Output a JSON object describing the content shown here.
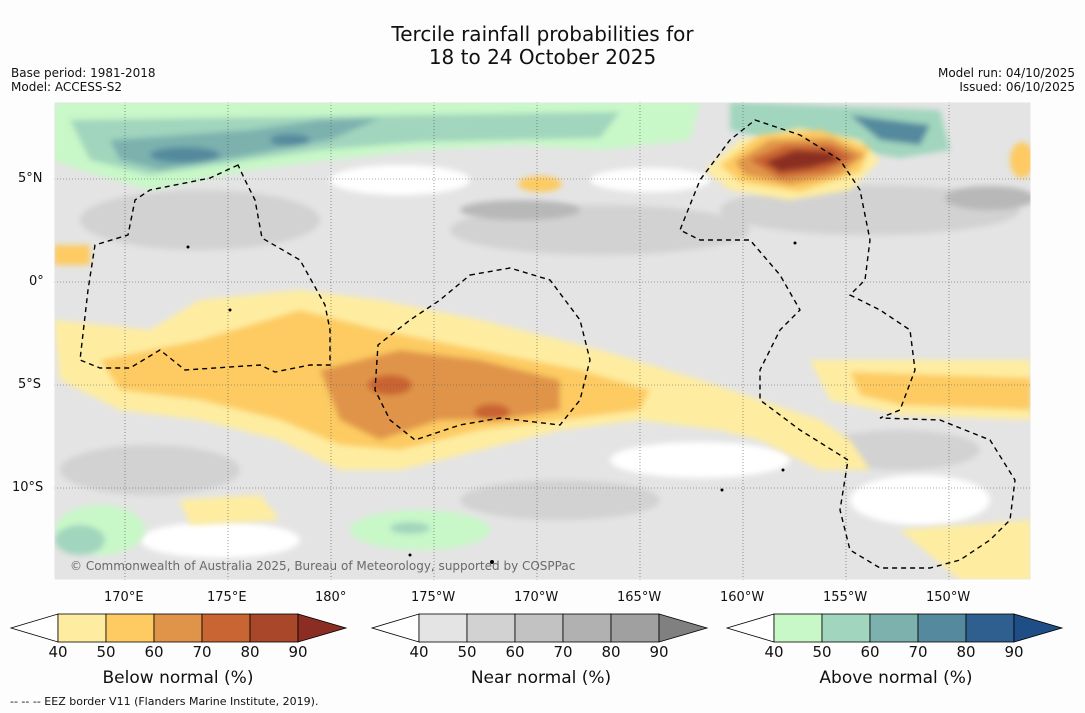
{
  "title": {
    "line1": "Tercile rainfall probabilities for",
    "line2": "18 to 24 October 2025"
  },
  "info_left": {
    "base_period": "Base period: 1981-2018",
    "model": "Model: ACCESS-S2"
  },
  "info_right": {
    "model_run": "Model run: 04/10/2025",
    "issued": "Issued: 06/10/2025"
  },
  "map": {
    "lat_labels": [
      "5°N",
      "0°",
      "5°S",
      "10°S"
    ],
    "lon_labels": [
      "170°E",
      "175°E",
      "180°",
      "175°W",
      "170°W",
      "165°W",
      "160°W",
      "155°W",
      "150°W"
    ],
    "copyright": "© Commonwealth of Australia 2025, Bureau of Meteorology, supported by COSPPac"
  },
  "colorbars": [
    {
      "label": "Below normal (%)",
      "ticks": [
        "40",
        "50",
        "60",
        "70",
        "80",
        "90"
      ],
      "colors": [
        "#ffffff",
        "#feeda0",
        "#fdcb62",
        "#e0944a",
        "#c96433",
        "#a9472b",
        "#8b2d23"
      ]
    },
    {
      "label": "Near normal (%)",
      "ticks": [
        "40",
        "50",
        "60",
        "70",
        "80",
        "90"
      ],
      "colors": [
        "#ffffff",
        "#e4e4e4",
        "#d2d2d2",
        "#c2c2c2",
        "#b1b1b1",
        "#a0a0a0",
        "#808080"
      ]
    },
    {
      "label": "Above normal (%)",
      "ticks": [
        "40",
        "50",
        "60",
        "70",
        "80",
        "90"
      ],
      "colors": [
        "#ffffff",
        "#c8f8c8",
        "#a1d5bd",
        "#7cb1ae",
        "#558a9e",
        "#2f5f8e",
        "#1f4d85"
      ]
    }
  ],
  "footnote": "-- -- -- EEZ border V11 (Flanders Marine Institute, 2019)."
}
